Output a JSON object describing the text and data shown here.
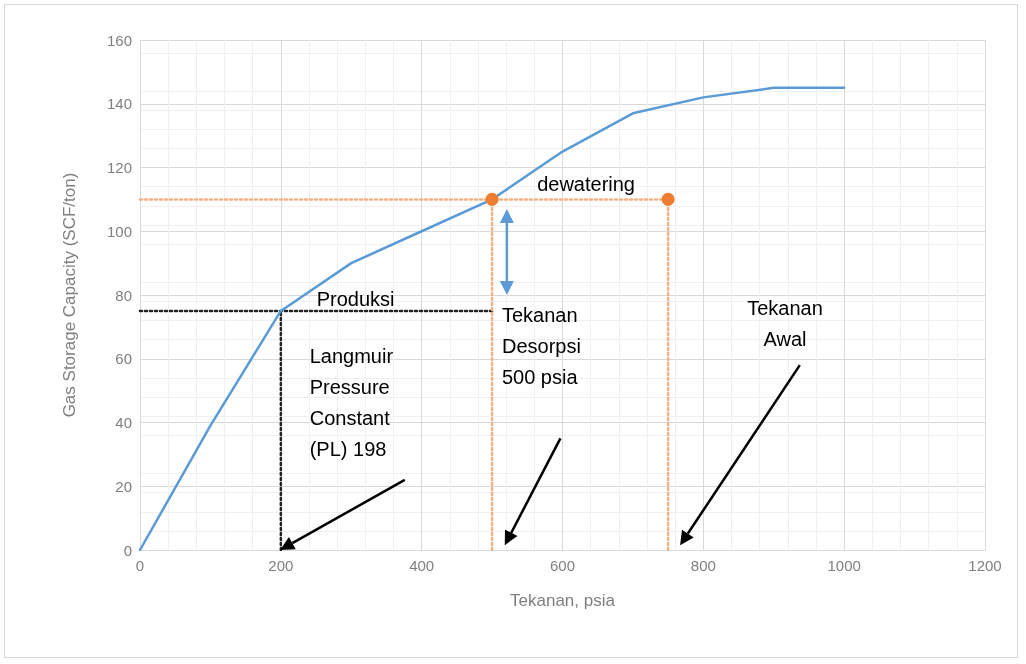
{
  "chart_data": {
    "type": "line",
    "xlabel": "Tekanan, psia",
    "ylabel": "Gas Storage Capacity (SCF/ton)",
    "xlim": [
      0,
      1200
    ],
    "xticks": [
      0,
      200,
      400,
      600,
      800,
      1000,
      1200
    ],
    "ylim": [
      0,
      160
    ],
    "yticks": [
      0,
      20,
      40,
      60,
      80,
      100,
      120,
      140,
      160
    ],
    "grid": true,
    "series": [
      {
        "color": "#5b9bd5",
        "marker": "none",
        "line_style": "solid",
        "x": [
          0,
          100,
          200,
          300,
          400,
          500,
          600,
          700,
          800,
          900,
          1000
        ],
        "values": [
          0,
          39,
          75,
          90,
          100,
          110,
          125,
          137,
          142,
          145,
          145
        ]
      },
      {
        "type": "line",
        "color": "#222222",
        "marker": "none",
        "line_style": "dotted",
        "x": [
          0,
          500
        ],
        "values": [
          75,
          75
        ]
      },
      {
        "type": "line",
        "color": "#222222",
        "marker": "none",
        "line_style": "dotted",
        "x": [
          200,
          200
        ],
        "values": [
          0,
          75
        ]
      },
      {
        "type": "line",
        "color": "#f4b183",
        "marker": "none",
        "line_style": "dotted",
        "x": [
          0,
          750
        ],
        "values": [
          110,
          110
        ]
      },
      {
        "type": "line",
        "color": "#f4b183",
        "marker": "none",
        "line_style": "dotted",
        "x": [
          500,
          500
        ],
        "values": [
          0,
          110
        ]
      },
      {
        "type": "line",
        "color": "#f4b183",
        "marker": "none",
        "line_style": "dotted",
        "x": [
          750,
          750
        ],
        "values": [
          0,
          110
        ]
      },
      {
        "type": "scatter",
        "color": "#ed7d31",
        "marker": "circle",
        "x": [
          500,
          750
        ],
        "values": [
          110,
          110
        ]
      }
    ],
    "annotations": [
      "dewatering",
      "Produksi",
      "Langmuir\nPressure\nConstant\n(PL) 198",
      "Tekanan\nDesorpsi\n500 psia",
      "Tekanan\nAwal"
    ]
  }
}
